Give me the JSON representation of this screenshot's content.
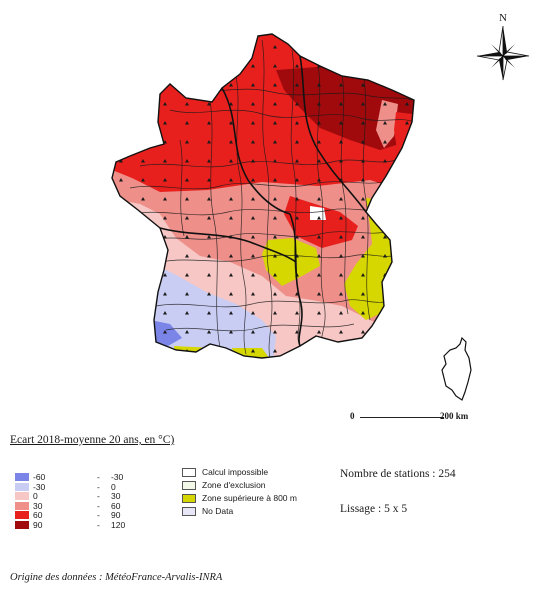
{
  "compass": {
    "north_label": "N",
    "icon": "compass-rose-icon"
  },
  "scale": {
    "start": "0",
    "end": "200 km"
  },
  "legend": {
    "title": "Ecart 2018-moyenne 20 ans, en °C)",
    "classes": [
      {
        "from": "-60",
        "to": "-30",
        "color": "#7b85e8"
      },
      {
        "from": "-30",
        "to": "0",
        "color": "#c9cdf3"
      },
      {
        "from": "0",
        "to": "30",
        "color": "#f6c7c4"
      },
      {
        "from": "30",
        "to": "60",
        "color": "#ee8f8a"
      },
      {
        "from": "60",
        "to": "90",
        "color": "#e8201d"
      },
      {
        "from": "90",
        "to": "120",
        "color": "#a00a0c"
      }
    ],
    "special": [
      {
        "label": "Calcul impossible",
        "color": "#ffffff"
      },
      {
        "label": "Zone d'exclusion",
        "color": "#f2f8e8"
      },
      {
        "label": "Zone supérieure à 800 m",
        "color": "#d6d600"
      },
      {
        "label": "No Data",
        "color": "#e6e6f7"
      }
    ]
  },
  "info": {
    "stations": "Nombre de stations : 254",
    "lissage": "Lissage : 5 x 5"
  },
  "source": "Origine des données : MétéoFrance-Arvalis-INRA"
}
